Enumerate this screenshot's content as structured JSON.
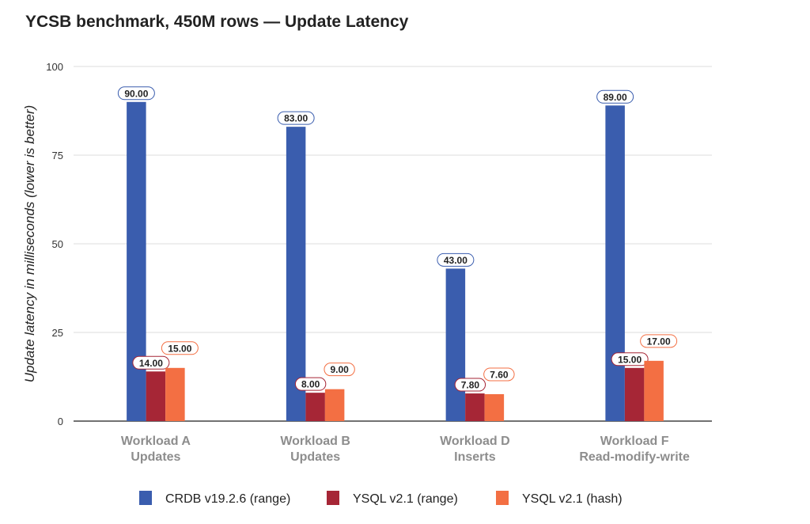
{
  "chart_data": {
    "type": "bar",
    "title": "YCSB benchmark, 450M rows — Update Latency",
    "xlabel": "",
    "ylabel": "Update latency in milliseconds (lower is better)",
    "ylim": [
      0,
      100
    ],
    "yticks": [
      0,
      25,
      50,
      75,
      100
    ],
    "grid": true,
    "legend_position": "bottom",
    "categories": [
      [
        "Workload A",
        "Updates"
      ],
      [
        "Workload B",
        "Updates"
      ],
      [
        "Workload D",
        "Inserts"
      ],
      [
        "Workload F",
        "Read-modify-write"
      ]
    ],
    "series": [
      {
        "name": "CRDB v19.2.6 (range)",
        "color": "#3a5dae",
        "values": [
          90.0,
          83.0,
          43.0,
          89.0
        ],
        "labels": [
          "90.00",
          "83.00",
          "43.00",
          "89.00"
        ]
      },
      {
        "name": "YSQL v2.1 (range)",
        "color": "#a62636",
        "values": [
          14.0,
          8.0,
          7.8,
          15.0
        ],
        "labels": [
          "14.00",
          "8.00",
          "7.80",
          "15.00"
        ]
      },
      {
        "name": "YSQL v2.1 (hash)",
        "color": "#f36f43",
        "values": [
          15.0,
          9.0,
          7.6,
          17.0
        ],
        "labels": [
          "15.00",
          "9.00",
          "7.60",
          "17.00"
        ]
      }
    ]
  }
}
